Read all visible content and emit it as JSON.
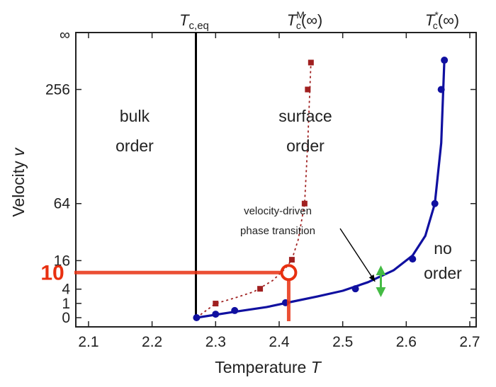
{
  "chart_data": {
    "type": "scatter",
    "xlabel": "Temperature",
    "xlabel_symbol": "T",
    "ylabel": "Velocity",
    "ylabel_symbol": "v",
    "xlim": [
      2.08,
      2.71
    ],
    "x_ticks": [
      2.1,
      2.2,
      2.3,
      2.4,
      2.5,
      2.6,
      2.7
    ],
    "x_tick_labels": [
      "2.1",
      "2.2",
      "2.3",
      "2.4",
      "2.5",
      "2.6",
      "2.7"
    ],
    "y_scale": "sqrt",
    "y_ticks": [
      0,
      1,
      4,
      16,
      64,
      256
    ],
    "y_tick_labels": [
      "0",
      "1",
      "4",
      "16",
      "64",
      "256"
    ],
    "y_infinity_label": "∞",
    "grid": false,
    "top_labels": {
      "tc_eq": {
        "x": 2.269,
        "base": "T",
        "sub": "c,eq",
        "sup": ""
      },
      "tc_m": {
        "x": 2.415,
        "base": "T",
        "sub": "c",
        "sup": "M",
        "tail": "(∞)"
      },
      "tc_star": {
        "x": 2.655,
        "base": "T",
        "sub": "c",
        "sup": "*",
        "tail": "(∞)"
      }
    },
    "equilibrium_line": {
      "x": 2.269,
      "color": "#000000"
    },
    "series": [
      {
        "marker": "circle",
        "color": "#1010a0",
        "points": [
          {
            "x": 2.27,
            "y": 0
          },
          {
            "x": 2.3,
            "y": 0.06
          },
          {
            "x": 2.33,
            "y": 0.25
          },
          {
            "x": 2.41,
            "y": 1.1
          },
          {
            "x": 2.52,
            "y": 4.1
          },
          {
            "x": 2.61,
            "y": 16.9
          },
          {
            "x": 2.645,
            "y": 64
          },
          {
            "x": 2.655,
            "y": 256
          },
          {
            "x": 2.66,
            "y": 326
          }
        ],
        "fit_curve": [
          [
            2.27,
            0
          ],
          [
            2.33,
            0.17
          ],
          [
            2.38,
            0.55
          ],
          [
            2.42,
            1.25
          ],
          [
            2.46,
            2.2
          ],
          [
            2.5,
            3.55
          ],
          [
            2.54,
            6.2
          ],
          [
            2.58,
            11.0
          ],
          [
            2.61,
            19.0
          ],
          [
            2.63,
            33
          ],
          [
            2.645,
            64
          ],
          [
            2.655,
            150
          ],
          [
            2.66,
            330
          ]
        ]
      },
      {
        "marker": "square",
        "color": "#a02020",
        "points": [
          {
            "x": 2.3,
            "y": 0.98
          },
          {
            "x": 2.37,
            "y": 4.1
          },
          {
            "x": 2.42,
            "y": 16.5
          },
          {
            "x": 2.44,
            "y": 64
          },
          {
            "x": 2.445,
            "y": 256
          },
          {
            "x": 2.45,
            "y": 320
          }
        ],
        "fit_curve": [
          [
            2.27,
            0
          ],
          [
            2.3,
            0.98
          ],
          [
            2.33,
            1.9
          ],
          [
            2.36,
            3.3
          ],
          [
            2.39,
            6.8
          ],
          [
            2.41,
            12
          ],
          [
            2.42,
            16.5
          ],
          [
            2.43,
            30
          ],
          [
            2.44,
            64
          ],
          [
            2.445,
            150
          ],
          [
            2.45,
            320
          ]
        ]
      }
    ],
    "regions": [
      {
        "lines": [
          "bulk",
          "order"
        ]
      },
      {
        "lines": [
          "surface",
          "order"
        ]
      },
      {
        "lines": [
          "no",
          "order"
        ]
      }
    ],
    "annotation": {
      "lines": [
        "velocity-driven",
        "phase transition"
      ],
      "arrow_target_x": 2.555,
      "arrow_target_y": 6.0
    },
    "range_arrow": {
      "x": 2.56,
      "y_from": 3.2,
      "y_to": 11.0,
      "color": "#44bb44"
    },
    "overlay": {
      "label": "10",
      "x": 2.415,
      "y": 10,
      "color": "#e83010"
    }
  }
}
